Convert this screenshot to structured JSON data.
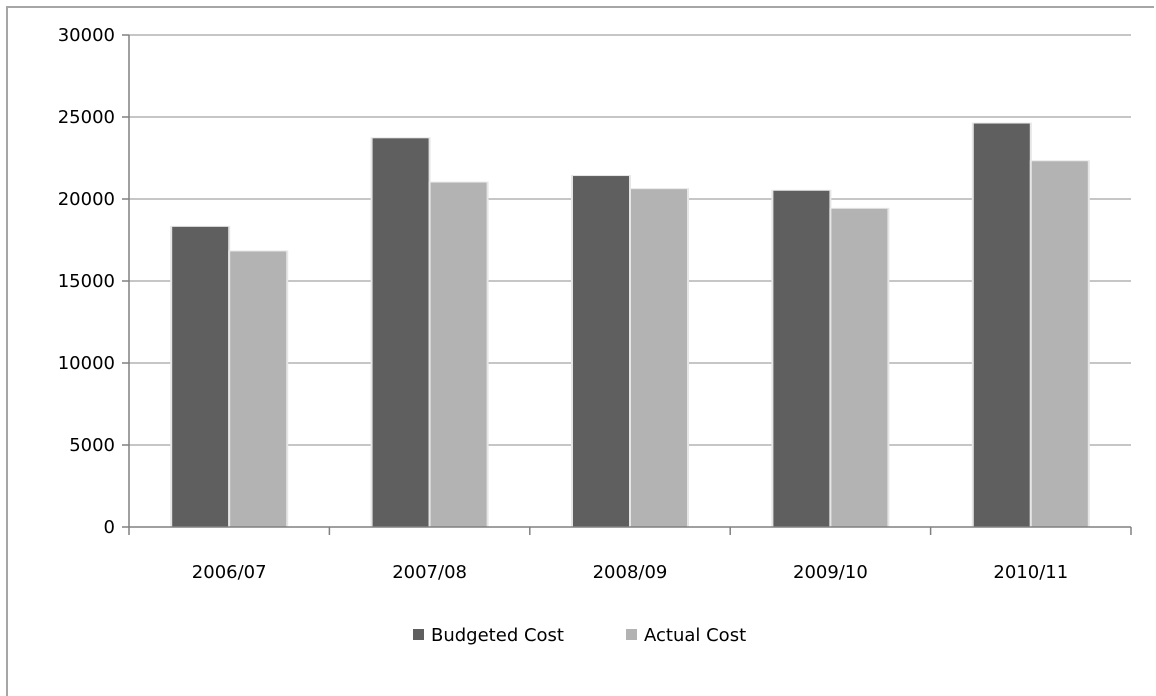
{
  "chart_data": {
    "type": "bar",
    "title": "",
    "xlabel": "",
    "ylabel": "",
    "categories": [
      "2006/07",
      "2007/08",
      "2008/09",
      "2009/10",
      "2010/11"
    ],
    "series": [
      {
        "name": "Budgeted Cost",
        "color": "#5f5f5f",
        "values": [
          18300,
          23700,
          21400,
          20500,
          24600
        ]
      },
      {
        "name": "Actual Cost",
        "color": "#b3b3b3",
        "values": [
          16800,
          21000,
          20600,
          19400,
          22300
        ]
      }
    ],
    "ylim": [
      0,
      30000
    ],
    "yticks": [
      0,
      5000,
      10000,
      15000,
      20000,
      25000,
      30000
    ],
    "grid": true,
    "legend": "bottom"
  }
}
